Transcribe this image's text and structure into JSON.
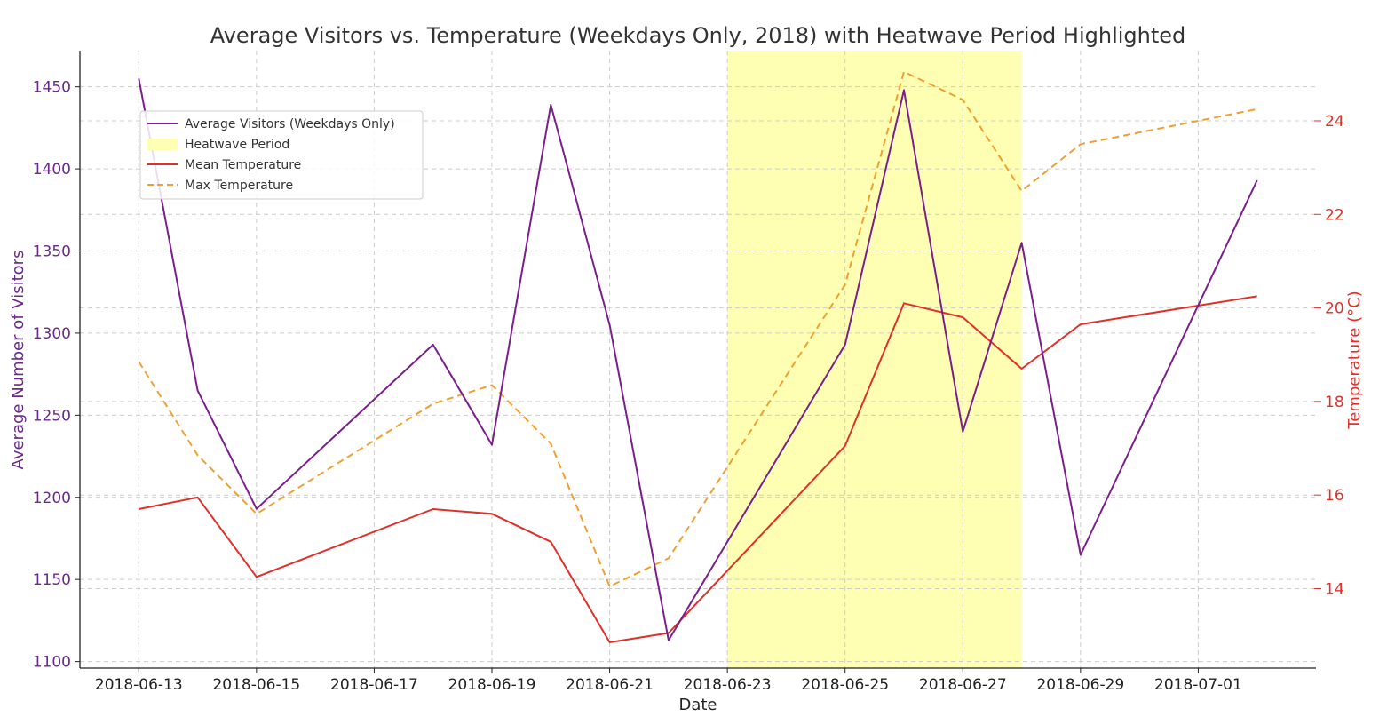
{
  "chart_data": {
    "type": "line",
    "title": "Average Visitors vs. Temperature (Weekdays Only, 2018) with Heatwave Period Highlighted",
    "xlabel": "Date",
    "ylabel_left": "Average Number of Visitors",
    "ylabel_right": "Temperature (°C)",
    "x_tick_labels": [
      "2018-06-13",
      "2018-06-15",
      "2018-06-17",
      "2018-06-19",
      "2018-06-21",
      "2018-06-23",
      "2018-06-25",
      "2018-06-27",
      "2018-06-29",
      "2018-07-01"
    ],
    "x_range": [
      "2018-06-12",
      "2018-07-03"
    ],
    "ylim_left": [
      1096,
      1472
    ],
    "yticks_left": [
      1100,
      1150,
      1200,
      1250,
      1300,
      1350,
      1400,
      1450
    ],
    "ylim_right": [
      12.3,
      25.5
    ],
    "yticks_right": [
      14,
      16,
      18,
      20,
      22,
      24
    ],
    "grid": true,
    "legend_position": "upper-left",
    "heatwave": {
      "name": "Heatwave Period",
      "start": "2018-06-23",
      "end": "2018-06-28",
      "color": "#ffffb3"
    },
    "series": [
      {
        "name": "Average Visitors (Weekdays Only)",
        "axis": "left",
        "color": "#7b1f8c",
        "style": "solid",
        "x": [
          "2018-06-13",
          "2018-06-14",
          "2018-06-15",
          "2018-06-18",
          "2018-06-19",
          "2018-06-20",
          "2018-06-21",
          "2018-06-22",
          "2018-06-25",
          "2018-06-26",
          "2018-06-27",
          "2018-06-28",
          "2018-06-29",
          "2018-07-02"
        ],
        "values": [
          1455,
          1265,
          1193,
          1293,
          1232,
          1439,
          1305,
          1113,
          1293,
          1448,
          1240,
          1355,
          1165,
          1393
        ]
      },
      {
        "name": "Mean Temperature",
        "axis": "right",
        "color": "#e0302a",
        "style": "solid",
        "x": [
          "2018-06-13",
          "2018-06-14",
          "2018-06-15",
          "2018-06-18",
          "2018-06-19",
          "2018-06-20",
          "2018-06-21",
          "2018-06-22",
          "2018-06-25",
          "2018-06-26",
          "2018-06-27",
          "2018-06-28",
          "2018-06-29",
          "2018-07-02"
        ],
        "values": [
          15.7,
          15.95,
          14.25,
          15.7,
          15.6,
          15.0,
          12.85,
          13.05,
          17.05,
          20.1,
          19.8,
          18.7,
          19.65,
          20.25
        ]
      },
      {
        "name": "Max Temperature",
        "axis": "right",
        "color": "#f0a030",
        "style": "dashed",
        "x": [
          "2018-06-13",
          "2018-06-14",
          "2018-06-15",
          "2018-06-18",
          "2018-06-19",
          "2018-06-20",
          "2018-06-21",
          "2018-06-22",
          "2018-06-25",
          "2018-06-26",
          "2018-06-27",
          "2018-06-28",
          "2018-06-29",
          "2018-07-02"
        ],
        "values": [
          18.85,
          16.85,
          15.6,
          17.95,
          18.35,
          17.1,
          14.05,
          14.65,
          20.5,
          25.05,
          24.45,
          22.5,
          23.5,
          24.25
        ]
      }
    ]
  }
}
